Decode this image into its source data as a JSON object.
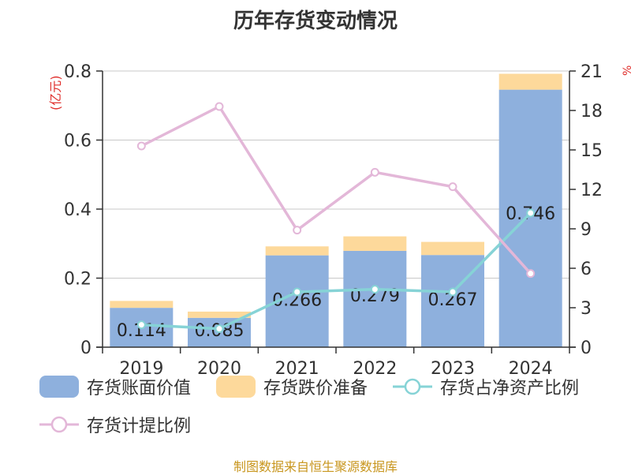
{
  "title": "历年存货变动情况",
  "source": "制图数据来自恒生聚源数据库",
  "chart_data": {
    "type": "bar",
    "title": "历年存货变动情况",
    "categories": [
      "2019",
      "2020",
      "2021",
      "2022",
      "2023",
      "2024"
    ],
    "y_left": {
      "label": "(亿元)",
      "ylim": [
        0,
        0.8
      ],
      "ticks": [
        "0",
        "0.2",
        "0.4",
        "0.6",
        "0.8"
      ]
    },
    "y_right": {
      "label": "%",
      "ylim": [
        0,
        21
      ],
      "ticks": [
        "0",
        "3",
        "6",
        "9",
        "12",
        "15",
        "18",
        "21"
      ]
    },
    "series": [
      {
        "name": "存货账面价值",
        "type": "bar",
        "axis": "left",
        "stack": "inv",
        "color": "#8eb0dd",
        "values": [
          0.114,
          0.085,
          0.266,
          0.279,
          0.267,
          0.746
        ],
        "labels": [
          "0.114",
          "0.085",
          "0.266",
          "0.279",
          "0.267",
          "0.746"
        ]
      },
      {
        "name": "存货跌价准备",
        "type": "bar",
        "axis": "left",
        "stack": "inv",
        "color": "#fdd99b",
        "values": [
          0.02,
          0.018,
          0.026,
          0.042,
          0.038,
          0.046
        ]
      },
      {
        "name": "存货占净资产比例",
        "type": "line",
        "axis": "right",
        "color": "#86d3d6",
        "values": [
          1.7,
          1.4,
          4.2,
          4.4,
          4.2,
          10.2
        ]
      },
      {
        "name": "存货计提比例",
        "type": "line",
        "axis": "right",
        "color": "#e3b7d8",
        "values": [
          15.3,
          18.3,
          8.9,
          13.3,
          12.2,
          5.6
        ]
      }
    ],
    "grid": true,
    "legend": "bottom"
  }
}
